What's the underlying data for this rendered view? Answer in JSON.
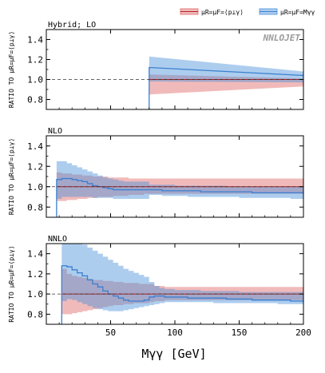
{
  "chart_data": {
    "type": "area",
    "xlabel": "Mγγ [GeV]",
    "ylabel": "RATIO TO μR=μF=⟨p⊥γ⟩",
    "xlim": [
      0,
      200
    ],
    "ylim": [
      0.7,
      1.5
    ],
    "xticks": [
      50,
      100,
      150,
      200
    ],
    "yticks": [
      0.8,
      1.0,
      1.2,
      1.4
    ],
    "logo": "NNLOJET",
    "legend": {
      "placement": "top-right",
      "entries": [
        {
          "label": "μR=μF=⟨p⊥γ⟩",
          "color": "#e06666"
        },
        {
          "label": "μR=μF=Mγγ",
          "color": "#4a90d9"
        }
      ]
    },
    "colors": {
      "red": "#e06666",
      "blue": "#4a90d9",
      "blue_line": "#3a7fd0",
      "red_line": "#b22222"
    },
    "panels": [
      {
        "title": "Hybrid; LO",
        "x_edges": [
          0,
          80,
          200
        ],
        "x_start": 80,
        "reference": {
          "low": [
            null,
            0.85
          ],
          "high": [
            null,
            1.05
          ],
          "central": [
            null,
            1.0
          ],
          "low_end": 0.93,
          "high_end": 1.01
        },
        "alternative": {
          "low": [
            null,
            0.98
          ],
          "high": [
            null,
            1.23
          ],
          "central": [
            null,
            1.12
          ],
          "low_end": 0.97,
          "high_end": 1.08,
          "central_end": 1.04
        }
      },
      {
        "title": "NLO",
        "x_edges": [
          8,
          12,
          16,
          20,
          24,
          28,
          32,
          36,
          40,
          44,
          48,
          52,
          56,
          60,
          64,
          68,
          72,
          76,
          80,
          90,
          100,
          110,
          120,
          130,
          140,
          150,
          160,
          170,
          180,
          190,
          200
        ],
        "x_start": 8,
        "reference": {
          "low": [
            0.86,
            0.86,
            0.87,
            0.87,
            0.88,
            0.88,
            0.89,
            0.89,
            0.9,
            0.9,
            0.9,
            0.91,
            0.91,
            0.91,
            0.92,
            0.92,
            0.92,
            0.93,
            0.93,
            0.93,
            0.93,
            0.93,
            0.93,
            0.93,
            0.93,
            0.93,
            0.93,
            0.93,
            0.93,
            0.93
          ],
          "high": [
            1.14,
            1.13,
            1.13,
            1.12,
            1.12,
            1.11,
            1.11,
            1.1,
            1.1,
            1.1,
            1.09,
            1.09,
            1.09,
            1.09,
            1.08,
            1.08,
            1.08,
            1.08,
            1.08,
            1.08,
            1.08,
            1.08,
            1.08,
            1.08,
            1.08,
            1.08,
            1.08,
            1.08,
            1.08,
            1.08
          ],
          "central": [
            1.0,
            1.0,
            1.0,
            1.0,
            1.0,
            1.0,
            1.0,
            1.0,
            1.0,
            1.0,
            1.0,
            1.0,
            1.0,
            1.0,
            1.0,
            1.0,
            1.0,
            1.0,
            1.0,
            1.0,
            1.0,
            1.0,
            1.0,
            1.0,
            1.0,
            1.0,
            1.0,
            1.0,
            1.0,
            1.0
          ]
        },
        "alternative": {
          "low": [
            0.88,
            0.9,
            0.9,
            0.9,
            0.9,
            0.9,
            0.9,
            0.89,
            0.89,
            0.89,
            0.89,
            0.88,
            0.88,
            0.88,
            0.88,
            0.88,
            0.88,
            0.88,
            0.92,
            0.91,
            0.91,
            0.9,
            0.9,
            0.9,
            0.9,
            0.89,
            0.89,
            0.89,
            0.89,
            0.88
          ],
          "high": [
            1.25,
            1.25,
            1.23,
            1.21,
            1.19,
            1.17,
            1.15,
            1.13,
            1.11,
            1.09,
            1.08,
            1.07,
            1.06,
            1.05,
            1.05,
            1.05,
            1.05,
            1.05,
            1.02,
            1.02,
            1.01,
            1.01,
            1.01,
            1.01,
            1.0,
            1.0,
            1.0,
            1.0,
            1.0,
            1.0
          ],
          "central": [
            1.07,
            1.08,
            1.08,
            1.07,
            1.06,
            1.05,
            1.03,
            1.01,
            1.0,
            0.99,
            0.98,
            0.97,
            0.97,
            0.97,
            0.97,
            0.97,
            0.97,
            0.97,
            0.97,
            0.96,
            0.96,
            0.96,
            0.95,
            0.95,
            0.95,
            0.95,
            0.94,
            0.94,
            0.94,
            0.94
          ]
        }
      },
      {
        "title": "NNLO",
        "x_edges": [
          12,
          16,
          20,
          24,
          28,
          32,
          36,
          40,
          44,
          48,
          52,
          56,
          60,
          64,
          68,
          72,
          76,
          80,
          84,
          88,
          92,
          96,
          100,
          110,
          120,
          130,
          140,
          150,
          160,
          170,
          180,
          190,
          200
        ],
        "x_start": 12,
        "reference": {
          "low": [
            0.8,
            0.8,
            0.81,
            0.82,
            0.83,
            0.84,
            0.85,
            0.86,
            0.87,
            0.88,
            0.89,
            0.89,
            0.9,
            0.9,
            0.91,
            0.91,
            0.91,
            0.92,
            0.93,
            0.93,
            0.94,
            0.94,
            0.94,
            0.94,
            0.94,
            0.94,
            0.94,
            0.94,
            0.94,
            0.94,
            0.94,
            0.94
          ],
          "high": [
            1.25,
            1.2,
            1.18,
            1.17,
            1.16,
            1.15,
            1.14,
            1.14,
            1.13,
            1.13,
            1.12,
            1.12,
            1.11,
            1.11,
            1.11,
            1.1,
            1.1,
            1.1,
            1.08,
            1.08,
            1.07,
            1.07,
            1.07,
            1.07,
            1.07,
            1.07,
            1.07,
            1.07,
            1.07,
            1.07,
            1.07,
            1.07
          ],
          "central": [
            1.0,
            1.0,
            1.0,
            1.0,
            1.0,
            1.0,
            1.0,
            1.0,
            1.0,
            1.0,
            1.0,
            1.0,
            1.0,
            1.0,
            1.0,
            1.0,
            1.0,
            1.0,
            1.0,
            1.0,
            1.0,
            1.0,
            1.0,
            1.0,
            1.0,
            1.0,
            1.0,
            1.0,
            1.0,
            1.0,
            1.0,
            1.0
          ]
        },
        "alternative": {
          "low": [
            0.93,
            0.95,
            0.94,
            0.92,
            0.9,
            0.88,
            0.86,
            0.85,
            0.84,
            0.83,
            0.83,
            0.83,
            0.84,
            0.85,
            0.86,
            0.87,
            0.88,
            0.89,
            0.9,
            0.91,
            0.92,
            0.92,
            0.92,
            0.92,
            0.92,
            0.91,
            0.91,
            0.91,
            0.91,
            0.91,
            0.9,
            0.9
          ],
          "high": [
            1.6,
            1.58,
            1.55,
            1.52,
            1.49,
            1.46,
            1.43,
            1.4,
            1.37,
            1.34,
            1.31,
            1.28,
            1.25,
            1.23,
            1.21,
            1.19,
            1.17,
            1.12,
            1.08,
            1.06,
            1.05,
            1.05,
            1.04,
            1.04,
            1.03,
            1.03,
            1.03,
            1.02,
            1.02,
            1.02,
            1.02,
            1.02
          ],
          "central": [
            1.28,
            1.27,
            1.24,
            1.21,
            1.18,
            1.14,
            1.1,
            1.07,
            1.03,
            1.0,
            0.98,
            0.96,
            0.94,
            0.93,
            0.93,
            0.93,
            0.94,
            0.97,
            0.98,
            0.98,
            0.97,
            0.97,
            0.97,
            0.96,
            0.96,
            0.96,
            0.95,
            0.95,
            0.94,
            0.94,
            0.94,
            0.93
          ]
        }
      }
    ]
  }
}
